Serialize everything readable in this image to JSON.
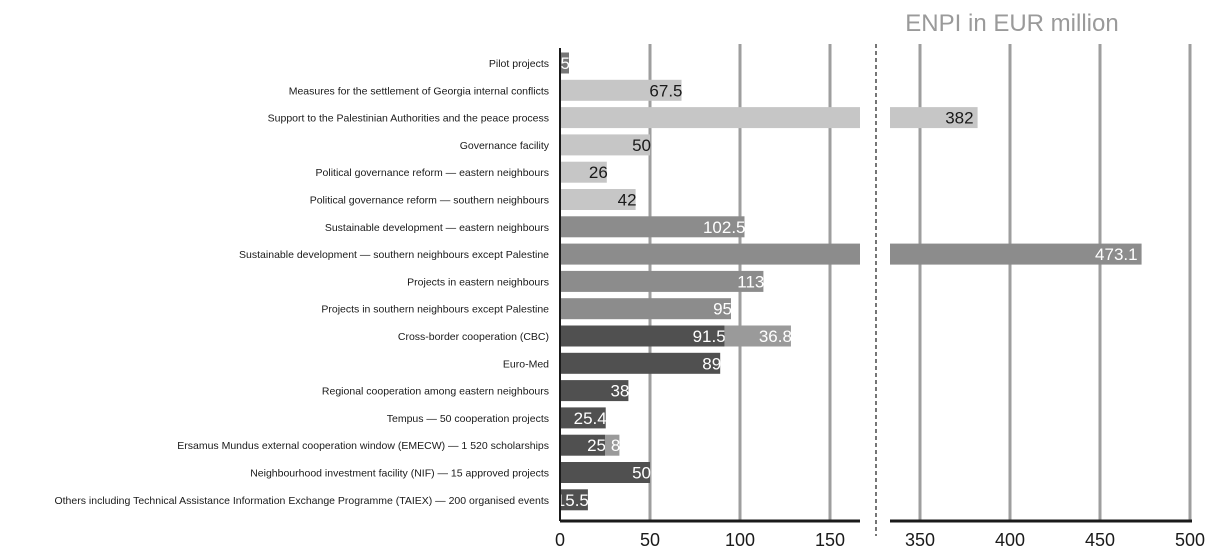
{
  "chart_data": {
    "type": "bar",
    "orientation": "horizontal",
    "title": "ENPI in EUR million",
    "axis_break": true,
    "xlim_left": [
      0,
      170
    ],
    "xlim_right": [
      330,
      500
    ],
    "x_ticks": [
      "0",
      "50",
      "100",
      "150",
      "350",
      "400",
      "450",
      "500"
    ],
    "grid": true,
    "categories": [
      "Pilot projects",
      "Measures for the settlement of Georgia internal conflicts",
      "Support to the Palestinian Authorities and the peace process",
      "Governance facility",
      "Political governance reform — eastern neighbours",
      "Political governance reform — southern neighbours",
      "Sustainable development — eastern neighbours",
      "Sustainable development — southern neighbours except Palestine",
      "Projects in eastern neighbours",
      "Projects in southern neighbours except Palestine",
      "Cross-border cooperation (CBC)",
      "Euro-Med",
      "Regional cooperation among eastern neighbours",
      "Tempus — 50 cooperation projects",
      "Ersamus Mundus external cooperation window (EMECW) — 1 520 scholarships",
      "Neighbourhood investment facility (NIF) — 15 approved projects",
      "Others including Technical Assistance Information Exchange Programme (TAIEX) — 200 organised events"
    ],
    "bars": [
      {
        "segments": [
          {
            "value": 5,
            "label": "5"
          }
        ],
        "color": "#777777"
      },
      {
        "segments": [
          {
            "value": 67.5,
            "label": "67.5"
          }
        ],
        "color": "#c6c6c6"
      },
      {
        "segments": [
          {
            "value": 382,
            "label": "382"
          }
        ],
        "color": "#c6c6c6"
      },
      {
        "segments": [
          {
            "value": 50,
            "label": "50"
          }
        ],
        "color": "#c6c6c6"
      },
      {
        "segments": [
          {
            "value": 26,
            "label": "26"
          }
        ],
        "color": "#c6c6c6"
      },
      {
        "segments": [
          {
            "value": 42,
            "label": "42"
          }
        ],
        "color": "#c6c6c6"
      },
      {
        "segments": [
          {
            "value": 102.5,
            "label": "102.5"
          }
        ],
        "color": "#8c8c8c"
      },
      {
        "segments": [
          {
            "value": 473.1,
            "label": "473.1"
          }
        ],
        "color": "#8c8c8c"
      },
      {
        "segments": [
          {
            "value": 113,
            "label": "113"
          }
        ],
        "color": "#8c8c8c"
      },
      {
        "segments": [
          {
            "value": 95,
            "label": "95"
          }
        ],
        "color": "#8c8c8c"
      },
      {
        "segments": [
          {
            "value": 91.5,
            "label": "91.5"
          },
          {
            "value": 36.8,
            "label": "36.8"
          }
        ],
        "color": "#505050",
        "color2": "#9a9a9a"
      },
      {
        "segments": [
          {
            "value": 89,
            "label": "89"
          }
        ],
        "color": "#505050"
      },
      {
        "segments": [
          {
            "value": 38,
            "label": "38"
          }
        ],
        "color": "#505050"
      },
      {
        "segments": [
          {
            "value": 25.4,
            "label": "25.4"
          }
        ],
        "color": "#505050"
      },
      {
        "segments": [
          {
            "value": 25,
            "label": "25"
          },
          {
            "value": 8,
            "label": "8"
          }
        ],
        "color": "#505050",
        "color2": "#9a9a9a"
      },
      {
        "segments": [
          {
            "value": 50,
            "label": "50"
          }
        ],
        "color": "#505050"
      },
      {
        "segments": [
          {
            "value": 15.5,
            "label": "15.5"
          }
        ],
        "color": "#505050"
      }
    ],
    "colors": {
      "grid": "#9e9e9e",
      "axis": "#1a1a1a",
      "title": "#9a9a9a"
    }
  }
}
